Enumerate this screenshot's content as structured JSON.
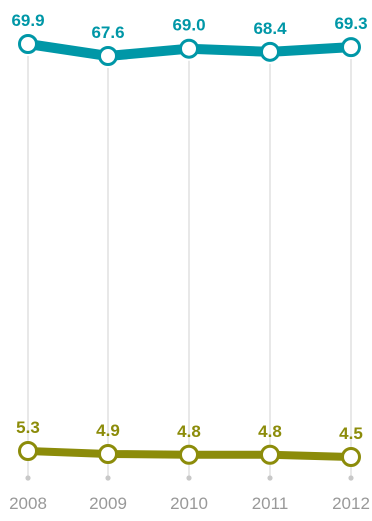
{
  "chart_data": {
    "type": "line",
    "x": [
      "2008",
      "2009",
      "2010",
      "2011",
      "2012"
    ],
    "series": [
      {
        "values": [
          69.9,
          67.6,
          69.0,
          68.4,
          69.3
        ],
        "labels": [
          "69.9",
          "67.6",
          "69.0",
          "68.4",
          "69.3"
        ],
        "color": "#0097a7"
      },
      {
        "values": [
          5.3,
          4.9,
          4.8,
          4.8,
          4.5
        ],
        "labels": [
          "5.3",
          "4.9",
          "4.8",
          "4.8",
          "4.5"
        ],
        "color": "#8c8c0a"
      }
    ],
    "grid": "vertical drop lines to year axis",
    "legend": "none"
  }
}
